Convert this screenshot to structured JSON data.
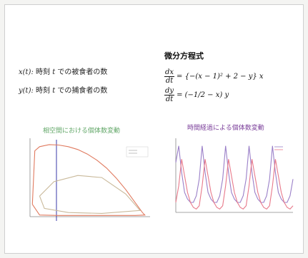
{
  "definitions": {
    "x_var": "x(t):",
    "x_text": " 時刻 ",
    "x_t": "t",
    "x_tail": " での被食者の数",
    "y_var": "y(t):",
    "y_text": " 時刻 ",
    "y_t": "t",
    "y_tail": " での捕食者の数"
  },
  "equations": {
    "heading": "微分方程式",
    "eq1_num": "dx",
    "eq1_den": "dt",
    "eq1_rhs": "= {−(x − 1)² + 2 − y} x",
    "eq2_num": "dy",
    "eq2_den": "dt",
    "eq2_rhs": "= (−1/2 − x) y"
  },
  "plots": {
    "left_title": "相空間における個体数変動",
    "right_title": "時間経過による個体数変動",
    "phase_color": "#e07a5f",
    "phase_inner_color": "#c9b99a",
    "vline_color": "#3a3aa8",
    "prey_color": "#9a7fc8",
    "predator_color": "#e8798a"
  },
  "chart_data": [
    {
      "type": "line",
      "title": "相空間における個体数変動",
      "xlabel": "",
      "ylabel": "",
      "series": [
        {
          "x": [
            0.05,
            0.1,
            0.2,
            0.4,
            0.6,
            0.8,
            1.0,
            1.2,
            1.4,
            1.6,
            1.8,
            2.0,
            2.2,
            2.35,
            2.4,
            2.2,
            1.8,
            1.2,
            0.6,
            0.2,
            0.05
          ],
          "y": [
            0.3,
            1.6,
            1.7,
            1.75,
            1.74,
            1.7,
            1.63,
            1.52,
            1.37,
            1.18,
            0.94,
            0.66,
            0.34,
            0.1,
            0.04,
            0.03,
            0.03,
            0.03,
            0.03,
            0.04,
            0.3
          ]
        },
        {
          "x": [
            0.2,
            0.5,
            1.0,
            1.5,
            2.0,
            2.3,
            1.5,
            0.8,
            0.3,
            0.2
          ],
          "y": [
            0.5,
            0.85,
            1.0,
            0.95,
            0.55,
            0.15,
            0.08,
            0.1,
            0.2,
            0.5
          ]
        }
      ]
    },
    {
      "type": "line",
      "title": "時間経過による個体数変動",
      "xlabel": "",
      "ylabel": "",
      "series": [
        {
          "x": [
            0,
            1,
            2,
            3,
            4,
            5,
            6,
            7,
            8,
            9,
            10,
            11,
            12,
            13,
            14,
            15,
            16,
            17,
            18,
            19,
            20,
            21,
            22,
            23,
            24,
            25,
            26,
            27,
            28,
            29,
            30,
            31,
            32,
            33,
            34,
            35,
            36,
            37,
            38,
            39,
            40
          ],
          "y": [
            1.5,
            2.0,
            1.2,
            0.6,
            0.4,
            0.3,
            0.3,
            0.5,
            1.0,
            2.0,
            1.2,
            0.6,
            0.4,
            0.3,
            0.3,
            0.5,
            1.0,
            2.0,
            1.2,
            0.6,
            0.4,
            0.3,
            0.3,
            0.5,
            1.0,
            2.0,
            1.2,
            0.6,
            0.4,
            0.3,
            0.3,
            0.5,
            1.0,
            2.0,
            1.2,
            0.6,
            0.4,
            0.3,
            0.3,
            0.5,
            1.0
          ]
        },
        {
          "x": [
            0,
            1,
            2,
            3,
            4,
            5,
            6,
            7,
            8,
            9,
            10,
            11,
            12,
            13,
            14,
            15,
            16,
            17,
            18,
            19,
            20,
            21,
            22,
            23,
            24,
            25,
            26,
            27,
            28,
            29,
            30,
            31,
            32,
            33,
            34,
            35,
            36,
            37,
            38,
            39,
            40
          ],
          "y": [
            0.3,
            0.8,
            1.6,
            1.1,
            0.6,
            0.3,
            0.15,
            0.1,
            0.2,
            0.8,
            1.6,
            1.1,
            0.6,
            0.3,
            0.15,
            0.1,
            0.2,
            0.8,
            1.6,
            1.1,
            0.6,
            0.3,
            0.15,
            0.1,
            0.2,
            0.8,
            1.6,
            1.1,
            0.6,
            0.3,
            0.15,
            0.1,
            0.2,
            0.8,
            1.6,
            1.1,
            0.6,
            0.3,
            0.15,
            0.1,
            0.2
          ]
        }
      ]
    }
  ]
}
